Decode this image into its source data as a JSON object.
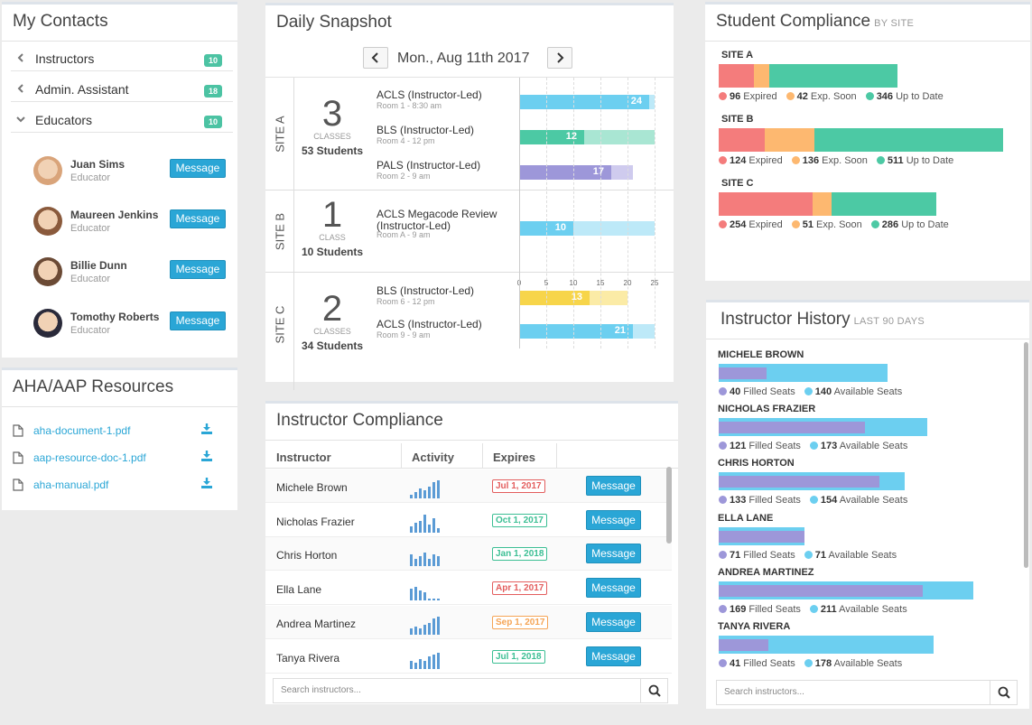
{
  "contacts": {
    "title": "My Contacts",
    "groups": [
      {
        "label": "Instructors",
        "count": "10"
      },
      {
        "label": "Admin. Assistant",
        "count": "18"
      },
      {
        "label": "Educators",
        "count": "10"
      }
    ],
    "people": [
      {
        "name": "Juan Sims",
        "role": "Educator",
        "button": "Message"
      },
      {
        "name": "Maureen Jenkins",
        "role": "Educator",
        "button": "Message"
      },
      {
        "name": "Billie Dunn",
        "role": "Educator",
        "button": "Message"
      },
      {
        "name": "Tomothy Roberts",
        "role": "Educator",
        "button": "Message"
      }
    ]
  },
  "resources": {
    "title": "AHA/AAP Resources",
    "files": [
      "aha-document-1.pdf",
      "aap-resource-doc-1.pdf",
      "aha-manual.pdf"
    ]
  },
  "snapshot": {
    "title": "Daily Snapshot",
    "date": "Mon., Aug 11th 2017",
    "sites": [
      {
        "label": "SITE A",
        "count": "3",
        "unit": "CLASSES",
        "students": "53 Students",
        "classes": [
          {
            "name": "ACLS (Instructor-Led)",
            "room": "Room 1 - 8:30 am",
            "value": 24,
            "cap": 25,
            "color": "#6ccff0",
            "light": "#bde9f8"
          },
          {
            "name": "BLS (Instructor-Led)",
            "room": "Room 4 - 12 pm",
            "value": 12,
            "cap": 25,
            "color": "#4cc9a4",
            "light": "#a9e6d3"
          },
          {
            "name": "PALS (Instructor-Led)",
            "room": "Room 2 - 9 am",
            "value": 17,
            "cap": 21,
            "color": "#9d97d9",
            "light": "#cfcbee"
          }
        ]
      },
      {
        "label": "SITE B",
        "count": "1",
        "unit": "CLASS",
        "students": "10 Students",
        "classes": [
          {
            "name": "ACLS Megacode Review",
            "name2": "(Instructor-Led)",
            "room": "Room A - 9 am",
            "value": 10,
            "cap": 25,
            "color": "#6ccff0",
            "light": "#bde9f8"
          }
        ]
      },
      {
        "label": "SITE C",
        "count": "2",
        "unit": "CLASSES",
        "students": "34 Students",
        "classes": [
          {
            "name": "BLS (Instructor-Led)",
            "room": "Room 6 - 12 pm",
            "value": 13,
            "cap": 20,
            "color": "#f7d54a",
            "light": "#fbeba6"
          },
          {
            "name": "ACLS (Instructor-Led)",
            "room": "Room 9 - 9 am",
            "value": 21,
            "cap": 25,
            "color": "#6ccff0",
            "light": "#bde9f8"
          }
        ]
      }
    ],
    "axis_ticks": [
      "0",
      "5",
      "10",
      "15",
      "20",
      "25"
    ]
  },
  "compliance": {
    "title": "Instructor Compliance",
    "headers": [
      "Instructor",
      "Activity",
      "Expires"
    ],
    "rows": [
      {
        "name": "Michele Brown",
        "expires": "Jul 1, 2017",
        "status": "red",
        "spark": [
          2,
          3,
          5,
          4,
          6,
          8,
          9
        ],
        "button": "Message"
      },
      {
        "name": "Nicholas Frazier",
        "expires": "Oct 1, 2017",
        "status": "green",
        "spark": [
          3,
          5,
          6,
          9,
          4,
          7,
          2
        ],
        "button": "Message"
      },
      {
        "name": "Chris Horton",
        "expires": "Jan 1, 2018",
        "status": "green",
        "spark": [
          6,
          4,
          5,
          7,
          4,
          6,
          5
        ],
        "button": "Message"
      },
      {
        "name": "Ella Lane",
        "expires": "Apr 1, 2017",
        "status": "red",
        "spark": [
          6,
          7,
          5,
          4,
          1,
          1,
          1
        ],
        "button": "Message"
      },
      {
        "name": "Andrea Martinez",
        "expires": "Sep 1, 2017",
        "status": "orange",
        "spark": [
          3,
          4,
          3,
          5,
          6,
          8,
          9
        ],
        "button": "Message"
      },
      {
        "name": "Tanya Rivera",
        "expires": "Jul 1, 2018",
        "status": "green",
        "spark": [
          4,
          3,
          5,
          4,
          6,
          7,
          8
        ],
        "button": "Message"
      }
    ],
    "search_placeholder": "Search instructors..."
  },
  "student_compliance": {
    "title": "Student Compliance",
    "subtitle": "BY SITE",
    "sites": [
      {
        "label": "SITE A",
        "expired": 96,
        "soon": 42,
        "uptodate": 346
      },
      {
        "label": "SITE B",
        "expired": 124,
        "soon": 136,
        "uptodate": 511
      },
      {
        "label": "SITE C",
        "expired": 254,
        "soon": 51,
        "uptodate": 286
      }
    ],
    "legend": {
      "expired": "Expired",
      "soon": "Exp. Soon",
      "uptodate": "Up to Date"
    }
  },
  "history": {
    "title": "Instructor History",
    "subtitle": "LAST 90 DAYS",
    "rows": [
      {
        "name": "MICHELE BROWN",
        "filled": 40,
        "available": 140
      },
      {
        "name": "NICHOLAS FRAZIER",
        "filled": 121,
        "available": 173
      },
      {
        "name": "CHRIS HORTON",
        "filled": 133,
        "available": 154
      },
      {
        "name": "ELLA LANE",
        "filled": 71,
        "available": 71
      },
      {
        "name": "ANDREA MARTINEZ",
        "filled": 169,
        "available": 211
      },
      {
        "name": "TANYA RIVERA",
        "filled": 41,
        "available": 178
      }
    ],
    "legend": {
      "filled": "Filled Seats",
      "available": "Available Seats"
    },
    "search_placeholder": "Search instructors..."
  },
  "colors": {
    "expired": "#f47c7c",
    "soon": "#fdb870",
    "uptodate": "#4cc9a4",
    "filled": "#9d97d9",
    "available": "#6ccff0"
  }
}
